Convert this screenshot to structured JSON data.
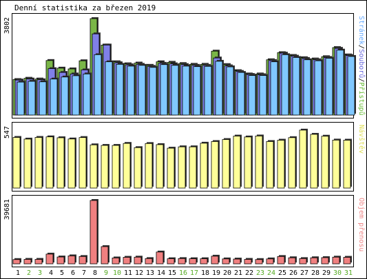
{
  "chart_data": {
    "type": "bar",
    "title": "Denní statistika za březen 2019",
    "categories": [
      "1",
      "2",
      "3",
      "4",
      "5",
      "6",
      "7",
      "8",
      "9",
      "10",
      "11",
      "12",
      "13",
      "14",
      "15",
      "16",
      "17",
      "18",
      "19",
      "20",
      "21",
      "22",
      "23",
      "24",
      "25",
      "26",
      "27",
      "28",
      "29",
      "30",
      "31"
    ],
    "weekend_days": [
      "2",
      "3",
      "9",
      "10",
      "16",
      "17",
      "23",
      "24",
      "30",
      "31"
    ],
    "panels": [
      {
        "name": "traffic",
        "ylabel_max": "3802",
        "ymax": 3802,
        "side_labels": [
          {
            "text": "Stránek",
            "color": "#66aaff"
          },
          {
            "text": "/",
            "color": "#000000"
          },
          {
            "text": "Souborů",
            "color": "#6666dd"
          },
          {
            "text": "/",
            "color": "#000000"
          },
          {
            "text": "Přístupů",
            "color": "#66bb33"
          }
        ],
        "series": [
          {
            "name": "Přístupů",
            "color": "#7ab648",
            "values": [
              1400,
              1450,
              1420,
              2150,
              1850,
              1820,
              2140,
              3802,
              2760,
              2100,
              2020,
              2050,
              1960,
              2100,
              2080,
              2030,
              2000,
              2000,
              2520,
              1990,
              1750,
              1620,
              1620,
              2180,
              2460,
              2350,
              2260,
              2210,
              2300,
              2660,
              2370
            ]
          },
          {
            "name": "Souborů",
            "color": "#8080e8",
            "values": [
              1380,
              1420,
              1390,
              1830,
              1680,
              1620,
              1780,
              3200,
              2760,
              2060,
              1980,
              2000,
              1920,
              2040,
              2020,
              1990,
              1960,
              1960,
              2250,
              1940,
              1720,
              1600,
              1590,
              2150,
              2440,
              2320,
              2230,
              2180,
              2270,
              2630,
              2350
            ]
          },
          {
            "name": "Stránek",
            "color": "#80c8ff",
            "values": [
              1300,
              1330,
              1310,
              1420,
              1500,
              1550,
              1620,
              2380,
              2100,
              2000,
              1930,
              1960,
              1880,
              1990,
              1960,
              1930,
              1910,
              1920,
              2120,
              1900,
              1680,
              1560,
              1560,
              2100,
              2380,
              2270,
              2180,
              2140,
              2240,
              2560,
              2310
            ]
          }
        ]
      },
      {
        "name": "visits",
        "ylabel_max": "547",
        "ymax": 547,
        "side_labels": [
          {
            "text": "Návštěv",
            "color": "#dddd55"
          }
        ],
        "series": [
          {
            "name": "Návštěv",
            "color": "#ffff99",
            "values": [
              457,
              442,
              457,
              462,
              454,
              443,
              456,
              390,
              385,
              385,
              403,
              365,
              402,
              392,
              360,
              372,
              372,
              405,
              420,
              438,
              469,
              461,
              470,
              420,
              432,
              455,
              523,
              485,
              468,
              433,
              432
            ]
          }
        ]
      },
      {
        "name": "volume",
        "ylabel_max": "39681",
        "ymax": 39681,
        "side_labels": [
          {
            "text": "Objem přenosu",
            "color": "#ee8888"
          }
        ],
        "series": [
          {
            "name": "Objem přenosu",
            "color": "#f08080",
            "values": [
              2700,
              2800,
              2800,
              6100,
              4300,
              5000,
              4600,
              39681,
              10800,
              3700,
              4100,
              4200,
              3300,
              7400,
              3200,
              3300,
              3200,
              3200,
              4800,
              3100,
              3000,
              2800,
              2700,
              3100,
              4600,
              3800,
              3300,
              3800,
              3900,
              4200,
              4100
            ]
          }
        ]
      }
    ]
  }
}
